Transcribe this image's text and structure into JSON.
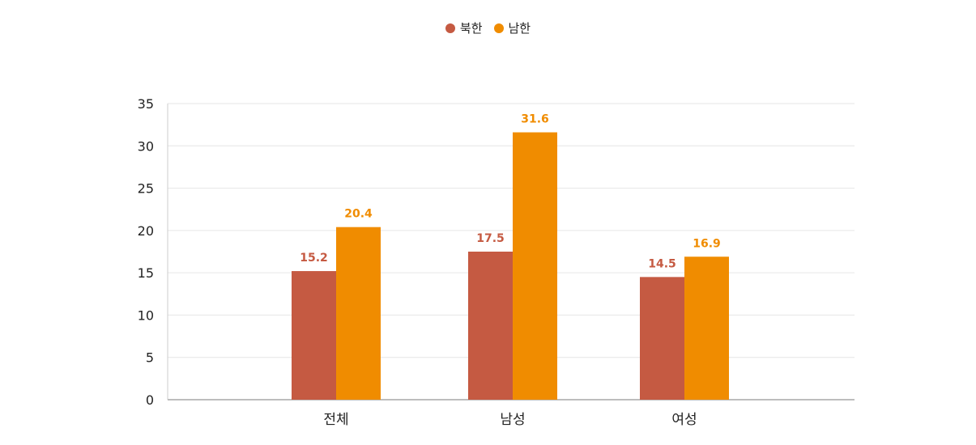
{
  "chart_data": {
    "type": "bar",
    "categories": [
      "전체",
      "남성",
      "여성"
    ],
    "series": [
      {
        "name": "북한",
        "values": [
          15.2,
          17.5,
          14.5
        ],
        "color": "#c55a42"
      },
      {
        "name": "남한",
        "values": [
          20.4,
          31.6,
          16.9
        ],
        "color": "#f08c00"
      }
    ],
    "ylim": [
      0,
      35
    ],
    "yticks": [
      0,
      5,
      10,
      15,
      20,
      25,
      30,
      35
    ],
    "grid": true,
    "legend": "top-center",
    "title": "",
    "xlabel": "",
    "ylabel": ""
  }
}
